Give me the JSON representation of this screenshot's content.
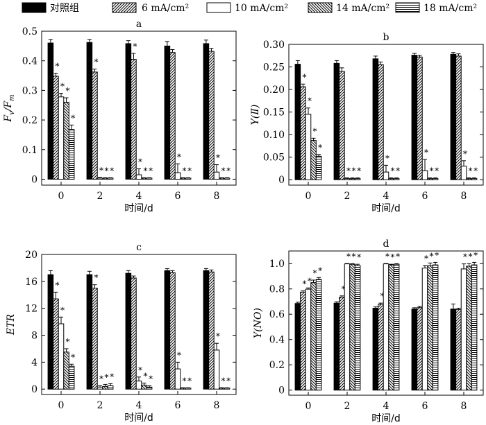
{
  "legend": [
    {
      "label": "对照组",
      "pattern": "solid"
    },
    {
      "label": "6 mA/cm²",
      "pattern": "diag-right"
    },
    {
      "label": "10 mA/cm²",
      "pattern": "white"
    },
    {
      "label": "14 mA/cm²",
      "pattern": "diag-left"
    },
    {
      "label": "18 mA/cm²",
      "pattern": "horizontal"
    }
  ],
  "colors": {
    "bar_fill": "#000000",
    "background": "#ffffff"
  },
  "chart_data": [
    {
      "type": "bar",
      "panel": "a",
      "categories": [
        "0",
        "2",
        "4",
        "6",
        "8"
      ],
      "xlabel": "时间/d",
      "ylabel": "Fv/Fm",
      "ylim": [
        -0.02,
        0.5
      ],
      "yticks": [
        "0",
        "0.1",
        "0.2",
        "0.3",
        "0.4",
        "0.5"
      ],
      "series": [
        {
          "name": "对照组",
          "values": [
            0.46,
            0.462,
            0.458,
            0.45,
            0.458
          ],
          "err": [
            0.012,
            0.01,
            0.01,
            0.015,
            0.012
          ]
        },
        {
          "name": "6 mA/cm²",
          "values": [
            0.348,
            0.362,
            0.405,
            0.428,
            0.432
          ],
          "err": [
            0.01,
            0.01,
            0.02,
            0.01,
            0.01
          ]
        },
        {
          "name": "10 mA/cm²",
          "values": [
            0.278,
            0.003,
            0.015,
            0.022,
            0.024
          ],
          "err": [
            0.012,
            0.003,
            0.02,
            0.03,
            0.025
          ]
        },
        {
          "name": "14 mA/cm²",
          "values": [
            0.26,
            0.003,
            0.003,
            0.003,
            0.003
          ],
          "err": [
            0.015,
            0.002,
            0.002,
            0.002,
            0.002
          ]
        },
        {
          "name": "18 mA/cm²",
          "values": [
            0.168,
            0.003,
            0.003,
            0.003,
            0.003
          ],
          "err": [
            0.015,
            0.002,
            0.002,
            0.002,
            0.002
          ]
        }
      ],
      "stars": [
        [
          "*",
          "*",
          "*",
          "*"
        ],
        [
          "*",
          "*",
          "*",
          "*"
        ],
        [
          "*",
          "*",
          "*",
          "*"
        ],
        [
          "",
          "*",
          "*",
          "*"
        ],
        [
          "",
          "*",
          "*",
          "*"
        ]
      ]
    },
    {
      "type": "bar",
      "panel": "b",
      "categories": [
        "0",
        "2",
        "4",
        "6",
        "8"
      ],
      "xlabel": "时间/d",
      "ylabel": "Y(Ⅱ)",
      "ylim": [
        -0.012,
        0.3
      ],
      "yticks": [
        "0",
        "0.05",
        "0.10",
        "0.15",
        "0.20",
        "0.25",
        "0.30"
      ],
      "series": [
        {
          "name": "对照组",
          "values": [
            0.256,
            0.258,
            0.268,
            0.276,
            0.278
          ],
          "err": [
            0.008,
            0.006,
            0.006,
            0.004,
            0.004
          ]
        },
        {
          "name": "6 mA/cm²",
          "values": [
            0.206,
            0.24,
            0.255,
            0.272,
            0.274
          ],
          "err": [
            0.006,
            0.008,
            0.006,
            0.004,
            0.005
          ]
        },
        {
          "name": "10 mA/cm²",
          "values": [
            0.145,
            0.002,
            0.017,
            0.02,
            0.03
          ],
          "err": [
            0.014,
            0.002,
            0.015,
            0.025,
            0.012
          ]
        },
        {
          "name": "14 mA/cm²",
          "values": [
            0.087,
            0.002,
            0.002,
            0.002,
            0.002
          ],
          "err": [
            0.005,
            0.002,
            0.002,
            0.002,
            0.002
          ]
        },
        {
          "name": "18 mA/cm²",
          "values": [
            0.052,
            0.002,
            0.002,
            0.002,
            0.002
          ],
          "err": [
            0.004,
            0.002,
            0.002,
            0.002,
            0.002
          ]
        }
      ],
      "stars": [
        [
          "*",
          "*",
          "*",
          "*"
        ],
        [
          "",
          "*",
          "*",
          "*"
        ],
        [
          "",
          "*",
          "*",
          "*"
        ],
        [
          "",
          "*",
          "*",
          "*"
        ],
        [
          "",
          "*",
          "*",
          "*"
        ]
      ]
    },
    {
      "type": "bar",
      "panel": "c",
      "categories": [
        "0",
        "2",
        "4",
        "6",
        "8"
      ],
      "xlabel": "时间/d",
      "ylabel": "ETR",
      "ylim": [
        -0.8,
        20
      ],
      "yticks": [
        "0",
        "4",
        "8",
        "12",
        "16",
        "20"
      ],
      "series": [
        {
          "name": "对照组",
          "values": [
            17.0,
            17.0,
            17.2,
            17.6,
            17.6
          ],
          "err": [
            0.6,
            0.5,
            0.4,
            0.3,
            0.3
          ]
        },
        {
          "name": "6 mA/cm²",
          "values": [
            13.4,
            15.0,
            16.5,
            17.3,
            17.4
          ],
          "err": [
            1.0,
            0.5,
            0.3,
            0.3,
            0.3
          ]
        },
        {
          "name": "10 mA/cm²",
          "values": [
            9.7,
            0.3,
            1.2,
            3.0,
            5.8
          ],
          "err": [
            1.0,
            0.2,
            0.6,
            1.0,
            1.0
          ]
        },
        {
          "name": "14 mA/cm²",
          "values": [
            5.5,
            0.4,
            0.6,
            0.1,
            0.1
          ],
          "err": [
            0.5,
            0.3,
            0.3,
            0.1,
            0.1
          ]
        },
        {
          "name": "18 mA/cm²",
          "values": [
            3.4,
            0.5,
            0.3,
            0.1,
            0.1
          ],
          "err": [
            0.3,
            0.3,
            0.2,
            0.1,
            0.1
          ]
        }
      ],
      "stars": [
        [
          "*",
          "*",
          "*",
          "*"
        ],
        [
          "*",
          "*",
          "*",
          "*"
        ],
        [
          "",
          "*",
          "*",
          "*"
        ],
        [
          "",
          "*",
          "*",
          "*"
        ],
        [
          "",
          "*",
          "*",
          "*"
        ]
      ]
    },
    {
      "type": "bar",
      "panel": "d",
      "categories": [
        "0",
        "2",
        "4",
        "6",
        "8"
      ],
      "xlabel": "时间/d",
      "ylabel": "Y(NO)",
      "ylim": [
        -0.04,
        1.1
      ],
      "yticks": [
        "0",
        "0.2",
        "0.4",
        "0.6",
        "0.8",
        "1.0"
      ],
      "series": [
        {
          "name": "对照组",
          "values": [
            0.685,
            0.688,
            0.648,
            0.641,
            0.641
          ],
          "err": [
            0.01,
            0.01,
            0.01,
            0.01,
            0.04
          ]
        },
        {
          "name": "6 mA/cm²",
          "values": [
            0.775,
            0.735,
            0.678,
            0.652,
            0.638
          ],
          "err": [
            0.01,
            0.01,
            0.01,
            0.01,
            0.01
          ]
        },
        {
          "name": "10 mA/cm²",
          "values": [
            0.798,
            0.998,
            0.998,
            0.965,
            0.958
          ],
          "err": [
            0.01,
            0.003,
            0.003,
            0.02,
            0.04
          ]
        },
        {
          "name": "14 mA/cm²",
          "values": [
            0.85,
            0.995,
            0.99,
            0.985,
            0.98
          ],
          "err": [
            0.02,
            0.005,
            0.005,
            0.02,
            0.02
          ]
        },
        {
          "name": "18 mA/cm²",
          "values": [
            0.875,
            0.985,
            0.995,
            0.99,
            0.99
          ],
          "err": [
            0.015,
            0.01,
            0.005,
            0.02,
            0.02
          ]
        }
      ],
      "stars": [
        [
          "*",
          "*",
          "*",
          "*"
        ],
        [
          "*",
          "*",
          "*",
          "*"
        ],
        [
          "*",
          "*",
          "*",
          "*"
        ],
        [
          "",
          "*",
          "*",
          "*"
        ],
        [
          "",
          "*",
          "*",
          "*"
        ]
      ]
    }
  ]
}
